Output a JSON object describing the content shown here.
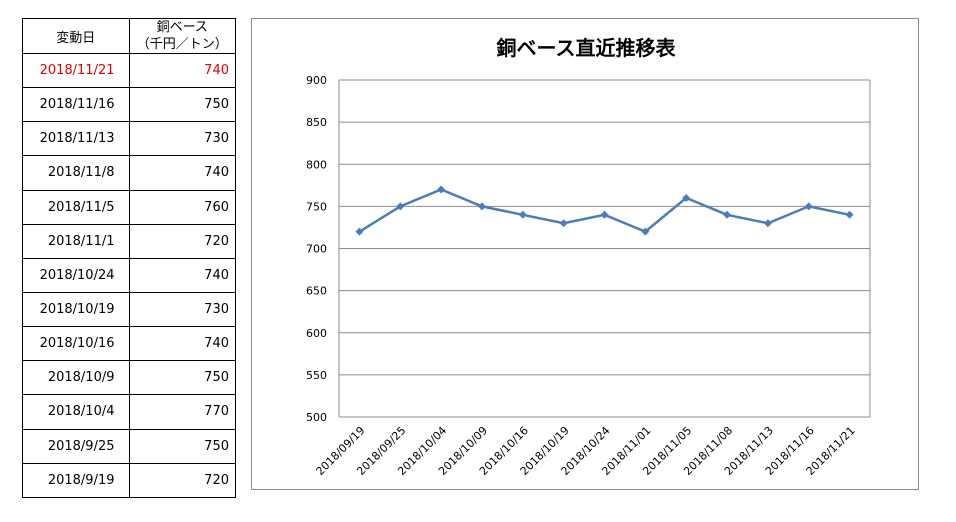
{
  "table": {
    "header_date": "変動日",
    "header_price_line1": "銅ベース",
    "header_price_line2": "（千円／トン）",
    "latest_color": "#e00000",
    "rows": [
      {
        "date": "2018/11/21",
        "price": "740"
      },
      {
        "date": "2018/11/16",
        "price": "750"
      },
      {
        "date": "2018/11/13",
        "price": "730"
      },
      {
        "date": "2018/11/8",
        "price": "740"
      },
      {
        "date": "2018/11/5",
        "price": "760"
      },
      {
        "date": "2018/11/1",
        "price": "720"
      },
      {
        "date": "2018/10/24",
        "price": "740"
      },
      {
        "date": "2018/10/19",
        "price": "730"
      },
      {
        "date": "2018/10/16",
        "price": "740"
      },
      {
        "date": "2018/10/9",
        "price": "750"
      },
      {
        "date": "2018/10/4",
        "price": "770"
      },
      {
        "date": "2018/9/25",
        "price": "750"
      },
      {
        "date": "2018/9/19",
        "price": "720"
      }
    ]
  },
  "chart_data": {
    "type": "line",
    "title": "銅ベース直近推移表",
    "categories": [
      "2018/09/19",
      "2018/09/25",
      "2018/10/04",
      "2018/10/09",
      "2018/10/16",
      "2018/10/19",
      "2018/10/24",
      "2018/11/01",
      "2018/11/05",
      "2018/11/08",
      "2018/11/13",
      "2018/11/16",
      "2018/11/21"
    ],
    "series": [
      {
        "values": [
          720,
          750,
          770,
          750,
          740,
          730,
          740,
          720,
          760,
          740,
          730,
          750,
          740
        ],
        "color": "#4a7ebb"
      }
    ],
    "ylim": [
      500,
      900
    ],
    "yticks": [
      500,
      550,
      600,
      650,
      700,
      750,
      800,
      850,
      900
    ],
    "grid": true,
    "legend": "none",
    "marker": "diamond"
  }
}
